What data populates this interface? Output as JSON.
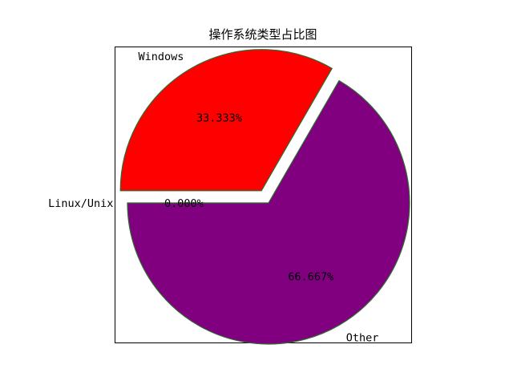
{
  "chart_data": {
    "type": "pie",
    "title": "操作系统类型占比图",
    "slices": [
      {
        "label": "Windows",
        "value": 33.333,
        "pct_label": "33.333%",
        "color": "#ff0000",
        "exploded": true
      },
      {
        "label": "Linux/Unix",
        "value": 0.0,
        "pct_label": "0.000%",
        "color": "#00008b",
        "exploded": false
      },
      {
        "label": "Other",
        "value": 66.667,
        "pct_label": "66.667%",
        "color": "#800080",
        "exploded": false
      }
    ],
    "start_angle_deg": 60,
    "counterclock": true,
    "edge_color": "#2e6b2e",
    "frame": true
  }
}
